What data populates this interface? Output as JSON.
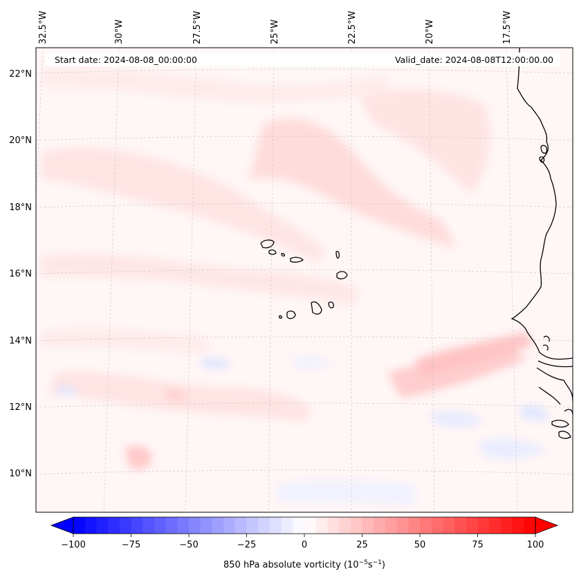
{
  "header": {
    "start_date": "Start date: 2024-08-08_00:00:00",
    "valid_date": "Valid_date: 2024-08-08T12:00:00.00"
  },
  "longitude_labels": [
    "32.5°W",
    "30°W",
    "27.5°W",
    "25°W",
    "22.5°W",
    "20°W",
    "17.5°W"
  ],
  "latitude_labels": [
    "22°N",
    "20°N",
    "18°N",
    "16°N",
    "14°N",
    "12°N",
    "10°N"
  ],
  "colorbar": {
    "ticks": [
      "−100",
      "−75",
      "−50",
      "−25",
      "0",
      "25",
      "50",
      "75",
      "100"
    ],
    "label_prefix": "850 hPa absolute vorticity (10",
    "label_exp1": "−5",
    "label_mid": "s",
    "label_exp2": "−1",
    "label_suffix": ")",
    "min": -100,
    "max": 100,
    "colors": {
      "negative": "#0000ff",
      "zero": "#ffffff",
      "positive": "#ff0000"
    }
  },
  "colors": {
    "coastline": "#000000",
    "gridline": "#b0b0b0",
    "field_background": "#fff5f5"
  }
}
